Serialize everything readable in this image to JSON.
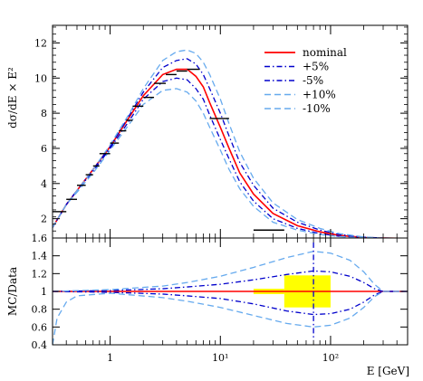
{
  "colors": {
    "nominal": "#ff0000",
    "plus5": "#0000cc",
    "minus5": "#0000cc",
    "plus10": "#66aaee",
    "minus10": "#66aaee",
    "band": "#ffff00",
    "data": "#000000",
    "data_blue": "#0000cc",
    "data_light": "#66aaee"
  },
  "chart_data": [
    {
      "type": "line",
      "xscale": "log",
      "xlim": [
        0.3,
        500
      ],
      "ylim": [
        0.9,
        13
      ],
      "ylabel": "dσ/dE × E²",
      "yticks": [
        2,
        4,
        6,
        8,
        10,
        12
      ],
      "grid": false,
      "legend_position": "top-right",
      "series": [
        {
          "name": "nominal",
          "style": "solid",
          "color_key": "nominal",
          "x": [
            0.3,
            0.4,
            0.5,
            0.7,
            1,
            1.5,
            2,
            3,
            4,
            5,
            6,
            7,
            8,
            10,
            12,
            15,
            20,
            30,
            50,
            80,
            120,
            200,
            300,
            500
          ],
          "y": [
            1.5,
            2.8,
            3.6,
            4.8,
            6.1,
            7.8,
            9.0,
            10.2,
            10.5,
            10.5,
            10.1,
            9.5,
            8.6,
            7.2,
            6.0,
            4.6,
            3.4,
            2.3,
            1.6,
            1.25,
            1.05,
            0.93,
            0.9,
            0.88
          ]
        },
        {
          "name": "+5%",
          "style": "dash-dot",
          "color_key": "plus5",
          "x": [
            0.3,
            0.4,
            0.5,
            0.7,
            1,
            1.5,
            2,
            3,
            4,
            5,
            6,
            7,
            8,
            10,
            12,
            15,
            20,
            30,
            50,
            80,
            120,
            200,
            300,
            500
          ],
          "y": [
            1.5,
            2.8,
            3.6,
            4.8,
            6.1,
            7.9,
            9.2,
            10.6,
            11.0,
            11.1,
            10.8,
            10.2,
            9.4,
            8.0,
            6.7,
            5.2,
            3.9,
            2.6,
            1.8,
            1.35,
            1.1,
            0.95,
            0.9,
            0.88
          ]
        },
        {
          "name": "-5%",
          "style": "dash-dot",
          "color_key": "minus5",
          "x": [
            0.3,
            0.4,
            0.5,
            0.7,
            1,
            1.5,
            2,
            3,
            4,
            5,
            6,
            7,
            8,
            10,
            12,
            15,
            20,
            30,
            50,
            80,
            120,
            200,
            300,
            500
          ],
          "y": [
            1.5,
            2.8,
            3.6,
            4.7,
            6.0,
            7.6,
            8.8,
            9.8,
            10.0,
            9.9,
            9.4,
            8.8,
            7.9,
            6.5,
            5.4,
            4.1,
            3.0,
            2.0,
            1.45,
            1.15,
            1.0,
            0.92,
            0.89,
            0.88
          ]
        },
        {
          "name": "+10%",
          "style": "dash",
          "color_key": "plus10",
          "x": [
            0.3,
            0.4,
            0.5,
            0.7,
            1,
            1.5,
            2,
            3,
            4,
            5,
            6,
            7,
            8,
            10,
            12,
            15,
            20,
            30,
            50,
            80,
            120,
            200,
            300,
            500
          ],
          "y": [
            1.5,
            2.8,
            3.6,
            4.8,
            6.2,
            8.0,
            9.4,
            11.0,
            11.5,
            11.6,
            11.4,
            10.9,
            10.2,
            8.8,
            7.4,
            5.8,
            4.3,
            2.9,
            1.95,
            1.45,
            1.15,
            0.96,
            0.9,
            0.88
          ]
        },
        {
          "name": "-10%",
          "style": "dash",
          "color_key": "minus10",
          "x": [
            0.3,
            0.4,
            0.5,
            0.7,
            1,
            1.5,
            2,
            3,
            4,
            5,
            6,
            7,
            8,
            10,
            12,
            15,
            20,
            30,
            50,
            80,
            120,
            200,
            300,
            500
          ],
          "y": [
            1.5,
            2.8,
            3.5,
            4.6,
            5.9,
            7.4,
            8.5,
            9.3,
            9.4,
            9.2,
            8.7,
            8.0,
            7.2,
            5.9,
            4.8,
            3.7,
            2.7,
            1.8,
            1.35,
            1.1,
            0.98,
            0.91,
            0.89,
            0.88
          ]
        }
      ],
      "data_points": [
        {
          "x": 0.35,
          "y": 2.4,
          "xerr": [
            0.3,
            0.4
          ],
          "color_key": "data"
        },
        {
          "x": 0.45,
          "y": 3.1,
          "xerr": [
            0.4,
            0.5
          ],
          "color_key": "data"
        },
        {
          "x": 0.55,
          "y": 3.9,
          "xerr": [
            0.5,
            0.6
          ],
          "color_key": "data"
        },
        {
          "x": 0.65,
          "y": 4.5,
          "xerr": [
            0.6,
            0.7
          ],
          "color_key": "data"
        },
        {
          "x": 0.75,
          "y": 5.0,
          "xerr": [
            0.7,
            0.8
          ],
          "color_key": "data"
        },
        {
          "x": 0.9,
          "y": 5.7,
          "xerr": [
            0.8,
            1.0
          ],
          "color_key": "data"
        },
        {
          "x": 1.1,
          "y": 6.3,
          "xerr": [
            1.0,
            1.2
          ],
          "color_key": "data"
        },
        {
          "x": 1.3,
          "y": 7.0,
          "xerr": [
            1.2,
            1.4
          ],
          "color_key": "data"
        },
        {
          "x": 1.5,
          "y": 7.6,
          "xerr": [
            1.4,
            1.6
          ],
          "color_key": "data"
        },
        {
          "x": 1.8,
          "y": 8.4,
          "xerr": [
            1.6,
            2.0
          ],
          "color_key": "data"
        },
        {
          "x": 2.2,
          "y": 8.9,
          "xerr": [
            2.0,
            2.5
          ],
          "color_key": "data"
        },
        {
          "x": 2.8,
          "y": 9.7,
          "xerr": [
            2.5,
            3.2
          ],
          "color_key": "data"
        },
        {
          "x": 3.5,
          "y": 10.2,
          "xerr": [
            3.2,
            4.0
          ],
          "color_key": "data"
        },
        {
          "x": 4.5,
          "y": 10.4,
          "xerr": [
            4.0,
            5.0
          ],
          "color_key": "data"
        },
        {
          "x": 5.5,
          "y": 10.5,
          "xerr": [
            5.0,
            6.5
          ],
          "color_key": "data"
        },
        {
          "x": 10,
          "y": 7.7,
          "xerr": [
            8,
            12
          ],
          "color_key": "data"
        },
        {
          "x": 22,
          "y": 1.35,
          "xerr": [
            20,
            38
          ],
          "color_key": "data"
        }
      ]
    },
    {
      "type": "line",
      "xscale": "log",
      "xlim": [
        0.3,
        500
      ],
      "ylim": [
        0.4,
        1.6
      ],
      "xlabel": "E [GeV]",
      "ylabel": "MC/Data",
      "yticks": [
        0.4,
        0.6,
        0.8,
        1,
        1.2,
        1.4,
        1.6
      ],
      "xticks": [
        1,
        10,
        100
      ],
      "xtick_labels": [
        "1",
        "10¹",
        "10²"
      ],
      "grid": false,
      "series": [
        {
          "name": "nominal",
          "style": "solid",
          "color_key": "nominal",
          "x": [
            0.3,
            1,
            3,
            10,
            30,
            70,
            100,
            200,
            300,
            500
          ],
          "y": [
            1.0,
            1.0,
            1.0,
            1.0,
            1.0,
            1.0,
            1.0,
            1.0,
            1.0,
            1.0
          ]
        },
        {
          "name": "+5%",
          "style": "dash-dot",
          "color_key": "plus5",
          "x": [
            0.3,
            1,
            3,
            5,
            10,
            20,
            40,
            70,
            100,
            150,
            200,
            250,
            300,
            500
          ],
          "y": [
            1.0,
            1.01,
            1.03,
            1.05,
            1.08,
            1.13,
            1.19,
            1.23,
            1.22,
            1.17,
            1.1,
            1.03,
            1.0,
            1.0
          ]
        },
        {
          "name": "-5%",
          "style": "dash-dot",
          "color_key": "minus5",
          "x": [
            0.3,
            1,
            3,
            5,
            10,
            20,
            40,
            70,
            100,
            150,
            200,
            250,
            300,
            500
          ],
          "y": [
            1.0,
            0.99,
            0.97,
            0.95,
            0.92,
            0.86,
            0.78,
            0.74,
            0.75,
            0.8,
            0.88,
            0.96,
            1.0,
            1.0
          ]
        },
        {
          "name": "+10%",
          "style": "dash",
          "color_key": "plus10",
          "x": [
            0.3,
            1,
            3,
            5,
            10,
            20,
            40,
            70,
            100,
            150,
            200,
            250,
            300,
            500
          ],
          "y": [
            1.0,
            1.02,
            1.06,
            1.1,
            1.17,
            1.27,
            1.38,
            1.45,
            1.43,
            1.35,
            1.22,
            1.08,
            1.0,
            1.0
          ]
        },
        {
          "name": "-10%",
          "style": "dash",
          "color_key": "minus10",
          "x": [
            0.3,
            0.33,
            0.4,
            0.5,
            1,
            3,
            5,
            10,
            20,
            40,
            70,
            100,
            150,
            200,
            250,
            300,
            500
          ],
          "y": [
            0.4,
            0.7,
            0.88,
            0.95,
            0.98,
            0.93,
            0.89,
            0.82,
            0.73,
            0.64,
            0.6,
            0.62,
            0.7,
            0.82,
            0.94,
            1.0,
            1.0
          ]
        }
      ],
      "band": [
        {
          "x": [
            20,
            38
          ],
          "y": [
            0.97,
            1.03
          ]
        },
        {
          "x": [
            38,
            100
          ],
          "y": [
            0.82,
            1.18
          ]
        }
      ]
    }
  ]
}
